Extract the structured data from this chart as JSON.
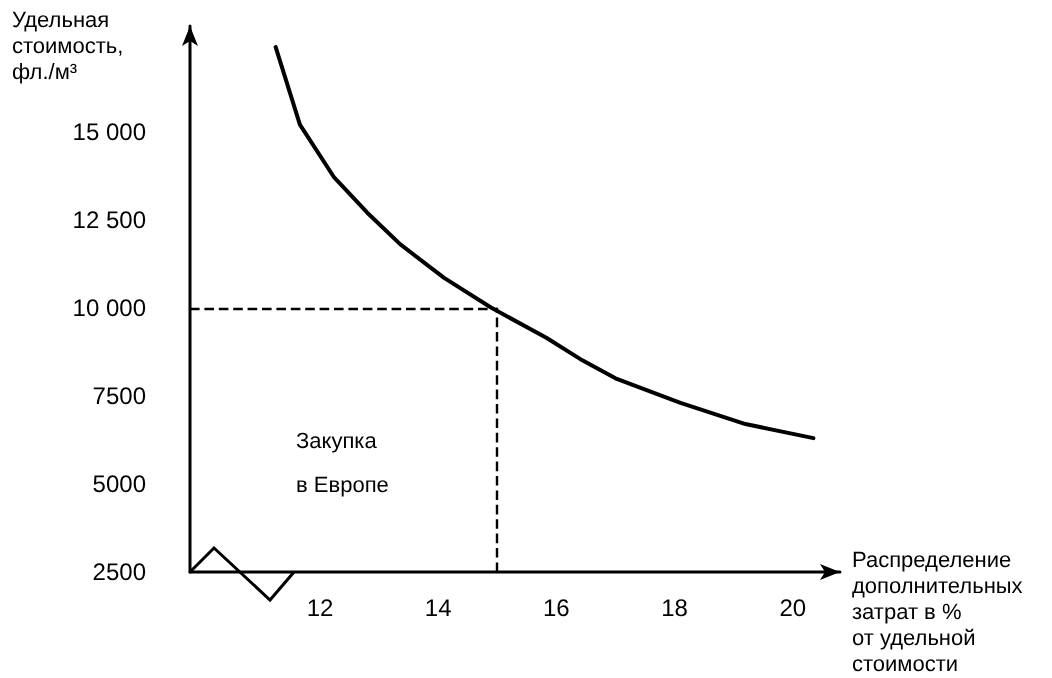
{
  "chart_data": {
    "type": "line",
    "xlabel": "Распределение\nдополнительных\nзатрат в %\nот удельной\nстоимости",
    "ylabel": "Удельная\nстоимость,\nфл./м³",
    "series": [
      {
        "color": "#000000",
        "x": [
          11.25,
          11.66,
          12.24,
          12.8,
          13.36,
          14.1,
          14.9,
          15.83,
          16.4,
          17.0,
          18.1,
          19.2,
          20.35
        ],
        "values": [
          17400,
          15200,
          13700,
          12700,
          11800,
          10850,
          10000,
          9150,
          8550,
          8000,
          7300,
          6700,
          6300
        ]
      }
    ],
    "xlim": [
      9.8,
      20.8
    ],
    "ylim": [
      2500,
      18000
    ],
    "xticks": [
      12,
      14,
      16,
      18,
      20
    ],
    "yticks": [
      {
        "value": 2500,
        "label": "2500"
      },
      {
        "value": 5000,
        "label": "5000"
      },
      {
        "value": 7500,
        "label": "7500"
      },
      {
        "value": 10000,
        "label": "10 000"
      },
      {
        "value": 12500,
        "label": "12 500"
      },
      {
        "value": 15000,
        "label": "15 000"
      }
    ],
    "ref_lines": [
      {
        "axis": "y",
        "value": 10000,
        "line_style": "dashed",
        "color": "#000000"
      },
      {
        "axis": "x",
        "value": 15,
        "line_style": "dashed",
        "color": "#000000"
      }
    ],
    "annotations": [
      "Закупка\nв Европе"
    ],
    "grid": false,
    "marker": "none",
    "line_style": "solid"
  }
}
